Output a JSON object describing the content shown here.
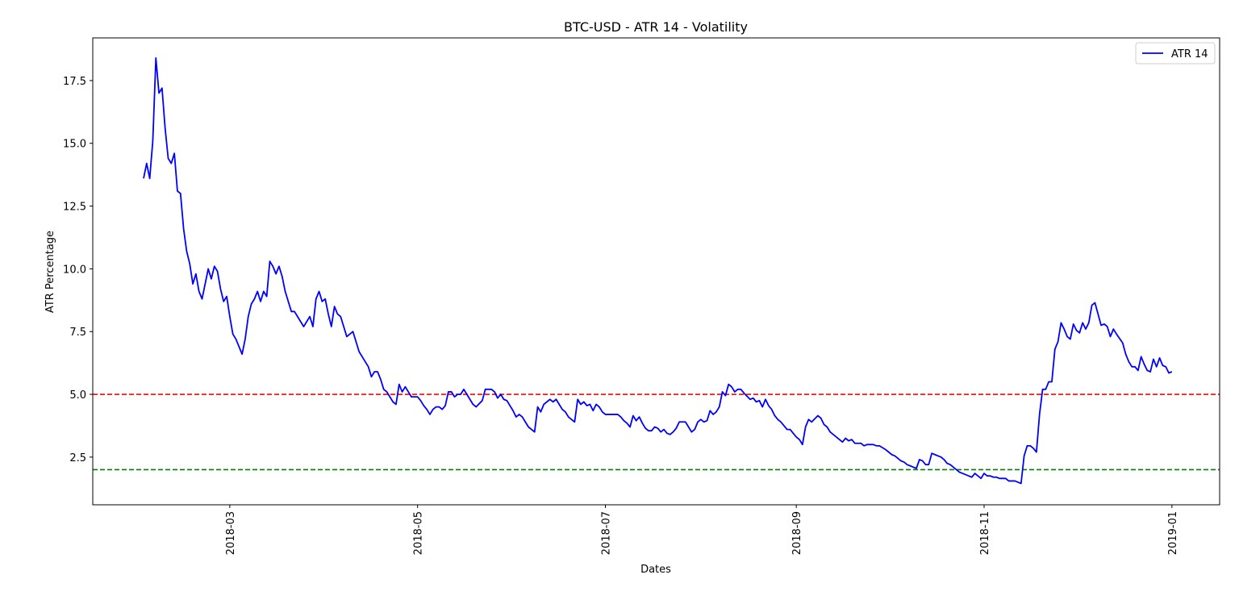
{
  "chart_data": {
    "type": "line",
    "title": "BTC-USD - ATR 14 - Volatility",
    "xlabel": "Dates",
    "ylabel": "ATR Percentage",
    "legend": "upper right",
    "x": [
      17563,
      17564,
      17565,
      17566,
      17567,
      17568,
      17569,
      17570,
      17571,
      17572,
      17573,
      17574,
      17575,
      17576,
      17577,
      17578,
      17579,
      17580,
      17581,
      17582,
      17583,
      17584,
      17585,
      17586,
      17587,
      17588,
      17589,
      17590,
      17591,
      17592,
      17593,
      17595,
      17596,
      17597,
      17598,
      17599,
      17600,
      17601,
      17602,
      17603,
      17604,
      17605,
      17606,
      17607,
      17608,
      17609,
      17610,
      17611,
      17612,
      17613,
      17614,
      17615,
      17616,
      17617,
      17618,
      17619,
      17620,
      17621,
      17622,
      17623,
      17624,
      17625,
      17626,
      17627,
      17628,
      17629,
      17631,
      17632,
      17633,
      17634,
      17635,
      17636,
      17637,
      17638,
      17639,
      17640,
      17641,
      17642,
      17643,
      17644,
      17645,
      17646,
      17647,
      17648,
      17649,
      17650,
      17652,
      17653,
      17654,
      17655,
      17656,
      17657,
      17658,
      17659,
      17660,
      17661,
      17662,
      17663,
      17664,
      17665,
      17666,
      17667,
      17668,
      17669,
      17670,
      17671,
      17673,
      17674,
      17675,
      17676,
      17677,
      17678,
      17679,
      17680,
      17681,
      17682,
      17683,
      17684,
      17685,
      17686,
      17687,
      17688,
      17689,
      17690,
      17691,
      17692,
      17693,
      17695,
      17696,
      17697,
      17698,
      17699,
      17700,
      17701,
      17702,
      17703,
      17704,
      17705,
      17706,
      17707,
      17708,
      17709,
      17710,
      17711,
      17712,
      17713,
      17714,
      17715,
      17717,
      17718,
      17719,
      17720,
      17721,
      17722,
      17723,
      17724,
      17725,
      17726,
      17727,
      17728,
      17729,
      17730,
      17731,
      17732,
      17733,
      17734,
      17735,
      17736,
      17737,
      17739,
      17740,
      17741,
      17742,
      17743,
      17744,
      17745,
      17746,
      17747,
      17748,
      17749,
      17750,
      17751,
      17752,
      17753,
      17754,
      17755,
      17756,
      17757,
      17758,
      17760,
      17761,
      17762,
      17763,
      17764,
      17765,
      17766,
      17767,
      17768,
      17769,
      17770,
      17771,
      17772,
      17773,
      17774,
      17775,
      17776,
      17777,
      17778,
      17779,
      17780,
      17782,
      17783,
      17784,
      17785,
      17786,
      17787,
      17788,
      17789,
      17790,
      17791,
      17792,
      17793,
      17794,
      17795,
      17796,
      17797,
      17798,
      17799,
      17800,
      17801,
      17802,
      17804,
      17805,
      17806,
      17807,
      17808,
      17809,
      17810,
      17811,
      17812,
      17813,
      17814,
      17815,
      17816,
      17817,
      17818,
      17819,
      17820,
      17821,
      17822,
      17823,
      17824,
      17825,
      17826,
      17827,
      17828,
      17829,
      17831,
      17832,
      17833,
      17834,
      17835,
      17836,
      17837,
      17838,
      17839,
      17840,
      17841,
      17842,
      17843,
      17844,
      17845,
      17846,
      17848,
      17849,
      17850,
      17851,
      17852,
      17853,
      17854,
      17855,
      17856,
      17857,
      17858,
      17859,
      17860,
      17861,
      17862,
      17863,
      17864,
      17865,
      17866,
      17867,
      17868,
      17869,
      17870,
      17871,
      17872,
      17873,
      17874,
      17875,
      17876,
      17877,
      17878,
      17879,
      17881,
      17882,
      17883,
      17884,
      17885,
      17886,
      17887,
      17888,
      17889,
      17890,
      17891,
      17892,
      17893,
      17894,
      17895,
      17896,
      17897
    ],
    "series": [
      {
        "name": "ATR 14",
        "color": "#0000ff",
        "values": [
          13.6,
          14.2,
          13.6,
          15.1,
          18.4,
          17.0,
          17.2,
          15.6,
          14.4,
          14.2,
          14.6,
          13.1,
          13.0,
          11.6,
          10.7,
          10.2,
          9.4,
          9.8,
          9.1,
          8.8,
          9.4,
          10.0,
          9.6,
          10.1,
          9.9,
          9.2,
          8.7,
          8.9,
          8.1,
          7.4,
          7.2,
          6.6,
          7.2,
          8.1,
          8.6,
          8.8,
          9.1,
          8.7,
          9.1,
          8.9,
          10.3,
          10.1,
          9.8,
          10.1,
          9.7,
          9.1,
          8.7,
          8.3,
          8.3,
          8.1,
          7.9,
          7.7,
          7.9,
          8.1,
          7.7,
          8.8,
          9.1,
          8.7,
          8.8,
          8.2,
          7.7,
          8.5,
          8.2,
          8.1,
          7.7,
          7.3,
          7.5,
          7.1,
          6.7,
          6.5,
          6.3,
          6.1,
          5.7,
          5.9,
          5.9,
          5.6,
          5.2,
          5.1,
          4.9,
          4.7,
          4.6,
          5.4,
          5.1,
          5.3,
          5.1,
          4.9,
          4.9,
          4.75,
          4.55,
          4.4,
          4.2,
          4.4,
          4.5,
          4.5,
          4.4,
          4.55,
          5.1,
          5.1,
          4.9,
          5.0,
          5.0,
          5.2,
          5.0,
          4.8,
          4.6,
          4.5,
          4.75,
          5.2,
          5.2,
          5.2,
          5.1,
          4.85,
          5.0,
          4.8,
          4.75,
          4.55,
          4.35,
          4.1,
          4.2,
          4.1,
          3.9,
          3.7,
          3.6,
          3.5,
          4.5,
          4.3,
          4.6,
          4.8,
          4.7,
          4.8,
          4.6,
          4.4,
          4.3,
          4.1,
          4.0,
          3.9,
          4.8,
          4.6,
          4.7,
          4.55,
          4.6,
          4.35,
          4.6,
          4.5,
          4.3,
          4.2,
          4.2,
          4.2,
          4.2,
          4.1,
          3.95,
          3.85,
          3.7,
          4.15,
          3.95,
          4.1,
          3.85,
          3.65,
          3.55,
          3.55,
          3.7,
          3.65,
          3.5,
          3.6,
          3.45,
          3.4,
          3.5,
          3.65,
          3.9,
          3.9,
          3.7,
          3.5,
          3.6,
          3.9,
          4.0,
          3.9,
          3.95,
          4.35,
          4.2,
          4.3,
          4.5,
          5.1,
          4.95,
          5.4,
          5.3,
          5.1,
          5.2,
          5.2,
          5.05,
          4.8,
          4.85,
          4.7,
          4.75,
          4.5,
          4.8,
          4.55,
          4.4,
          4.15,
          4.0,
          3.9,
          3.75,
          3.6,
          3.6,
          3.45,
          3.3,
          3.2,
          3.0,
          3.7,
          4.0,
          3.9,
          4.15,
          4.05,
          3.8,
          3.7,
          3.5,
          3.4,
          3.3,
          3.2,
          3.1,
          3.25,
          3.15,
          3.2,
          3.05,
          3.05,
          3.05,
          2.95,
          3.0,
          3.0,
          3.0,
          2.95,
          2.95,
          2.8,
          2.7,
          2.6,
          2.55,
          2.45,
          2.35,
          2.3,
          2.2,
          2.15,
          2.1,
          2.05,
          2.4,
          2.35,
          2.2,
          2.2,
          2.65,
          2.6,
          2.55,
          2.5,
          2.4,
          2.25,
          2.2,
          2.1,
          2.0,
          1.9,
          1.85,
          1.75,
          1.7,
          1.85,
          1.75,
          1.65,
          1.85,
          1.75,
          1.75,
          1.7,
          1.7,
          1.65,
          1.65,
          1.65,
          1.55,
          1.55,
          1.55,
          1.45,
          2.55,
          2.95,
          2.95,
          2.85,
          2.7,
          4.2,
          5.2,
          5.2,
          5.5,
          5.5,
          6.8,
          7.1,
          7.85,
          7.6,
          7.3,
          7.2,
          7.8,
          7.55,
          7.45,
          7.85,
          7.6,
          7.85,
          8.55,
          8.65,
          8.2,
          7.75,
          7.8,
          7.7,
          7.3,
          7.6,
          7.4,
          7.05,
          6.6,
          6.3,
          6.1,
          6.1,
          5.95,
          6.5,
          6.2,
          5.95,
          5.9,
          6.4,
          6.1,
          6.45,
          6.15,
          6.1,
          5.85,
          5.9
        ]
      }
    ],
    "hlines": [
      {
        "value": 5,
        "color": "#ff0000"
      },
      {
        "value": 2,
        "color": "#008000"
      }
    ],
    "xlim": [
      17546.5,
      17912.5
    ],
    "xticks": [
      {
        "value": 17591,
        "label": "2018-03"
      },
      {
        "value": 17652,
        "label": "2018-05"
      },
      {
        "value": 17713,
        "label": "2018-07"
      },
      {
        "value": 17775,
        "label": "2018-09"
      },
      {
        "value": 17836,
        "label": "2018-11"
      },
      {
        "value": 17897,
        "label": "2019-01"
      }
    ],
    "ylim": [
      0.6,
      19.2
    ],
    "yticks": [
      2.5,
      {
        "value": 5,
        "label": "5.0"
      },
      7.5,
      {
        "value": 10,
        "label": "10.0"
      },
      12.5,
      {
        "value": 15,
        "label": "15.0"
      },
      17.5
    ]
  }
}
